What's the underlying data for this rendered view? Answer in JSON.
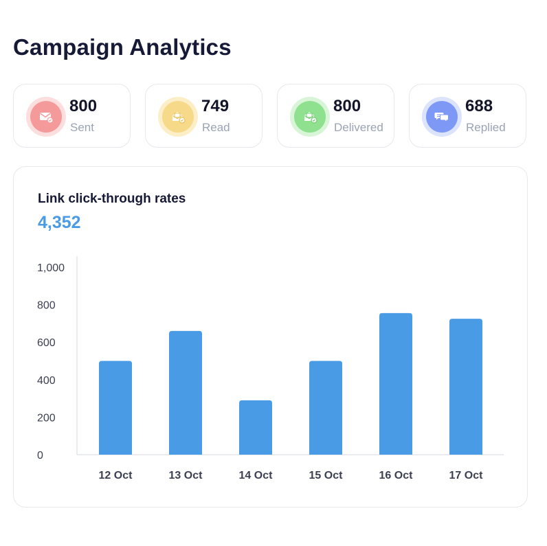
{
  "page": {
    "title": "Campaign Analytics"
  },
  "stats": [
    {
      "value": "800",
      "label": "Sent",
      "icon": "mail-icon",
      "ring_color": "#fcdede",
      "fill_color": "#f59a9a"
    },
    {
      "value": "749",
      "label": "Read",
      "icon": "opened-mail-icon",
      "ring_color": "#fcefc8",
      "fill_color": "#f7d98a"
    },
    {
      "value": "800",
      "label": "Delivered",
      "icon": "mail-check-icon",
      "ring_color": "#d8f5d8",
      "fill_color": "#8fe08f"
    },
    {
      "value": "688",
      "label": "Replied",
      "icon": "chat-bubbles-icon",
      "ring_color": "#dbe3fd",
      "fill_color": "#7e98f5"
    }
  ],
  "chart_card": {
    "title": "Link click-through rates",
    "total": "4,352"
  },
  "chart_data": {
    "type": "bar",
    "title": "Link click-through rates",
    "categories": [
      "12 Oct",
      "13 Oct",
      "14 Oct",
      "15 Oct",
      "16 Oct",
      "17 Oct"
    ],
    "values": [
      500,
      660,
      290,
      500,
      755,
      725
    ],
    "ylim": [
      0,
      1000
    ],
    "yticks": [
      0,
      200,
      400,
      600,
      800,
      1000
    ],
    "ytick_labels": [
      "0",
      "200",
      "400",
      "600",
      "800",
      "1,000"
    ],
    "xlabel": "",
    "ylabel": "",
    "grid": false,
    "bar_color": "#4a9be6"
  }
}
